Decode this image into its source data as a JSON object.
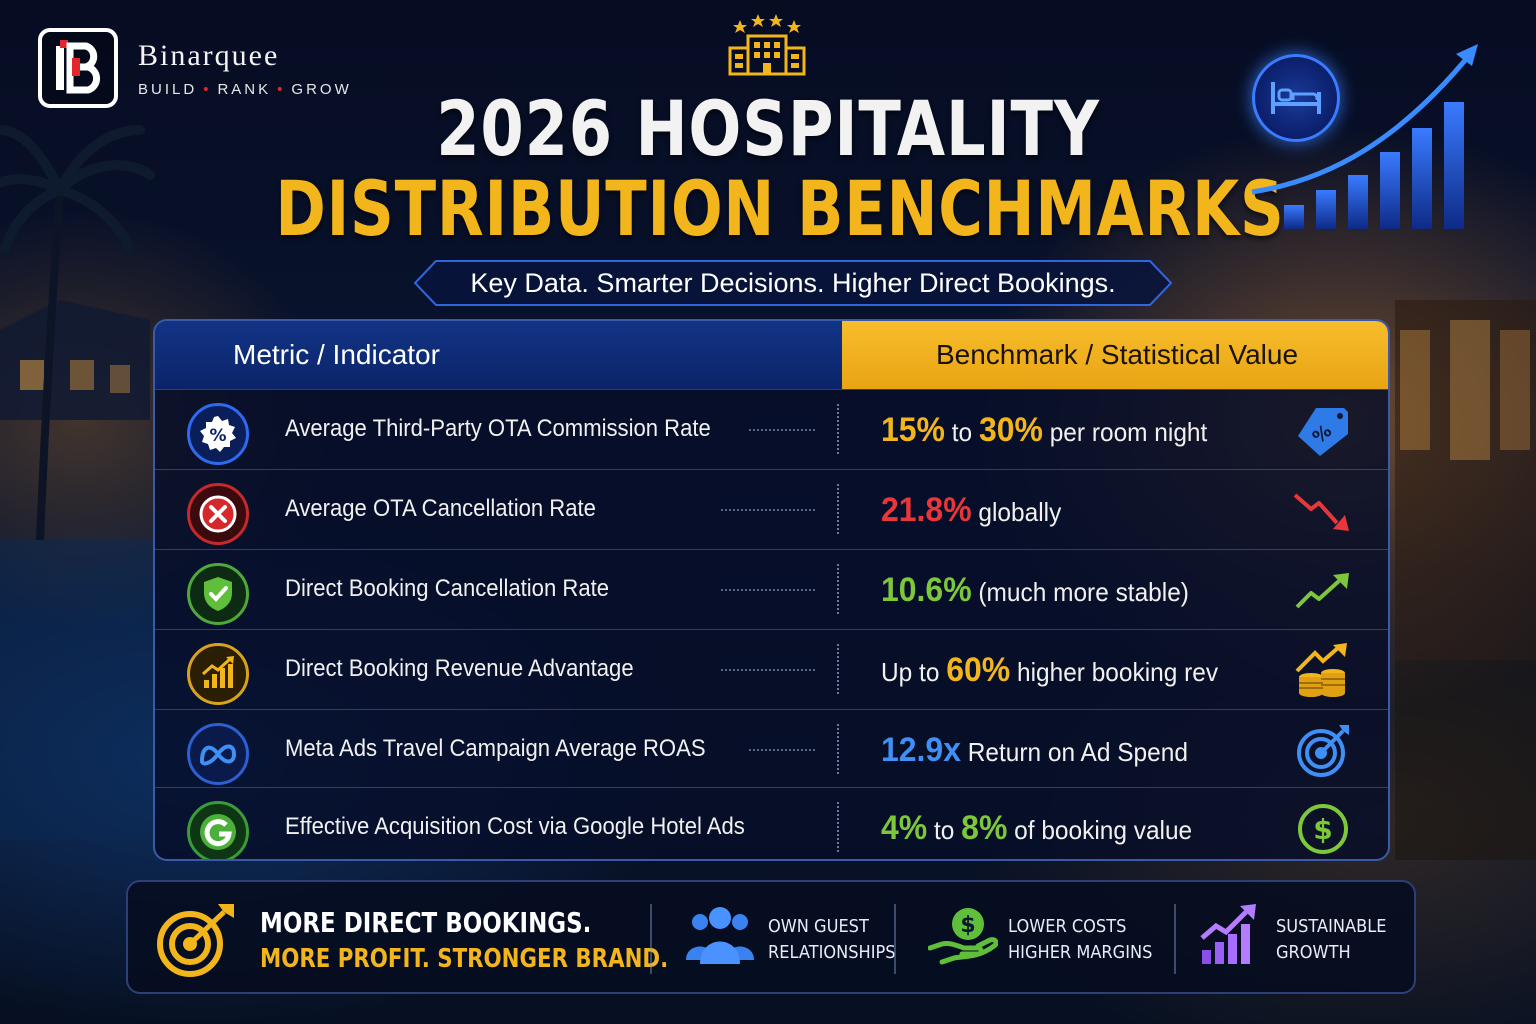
{
  "brand": {
    "name": "Binarquee",
    "tagline_parts": [
      "BUILD",
      "RANK",
      "GROW"
    ]
  },
  "title": {
    "line1": "2026 HOSPITALITY",
    "line2": "DISTRIBUTION BENCHMARKS",
    "subtitle": "Key Data. Smarter Decisions. Higher Direct Bookings."
  },
  "table": {
    "headers": {
      "metric": "Metric / Indicator",
      "value": "Benchmark / Statistical Value"
    },
    "rows": [
      {
        "icon": "percent-badge-icon",
        "label": "Average Third-Party OTA Commission Rate",
        "value_parts": [
          {
            "text": "15%",
            "style": "big",
            "color": "#f3b51c"
          },
          {
            "text": " to ",
            "style": "normal",
            "color": "#f1f1f1"
          },
          {
            "text": "30%",
            "style": "big",
            "color": "#f3b51c"
          },
          {
            "text": " per room night",
            "style": "normal",
            "color": "#f1f1f1"
          }
        ],
        "right_icon": "percent-tag-icon"
      },
      {
        "icon": "x-circle-icon",
        "label": "Average OTA Cancellation Rate",
        "value_parts": [
          {
            "text": "21.8%",
            "style": "big",
            "color": "#e8373a"
          },
          {
            "text": " globally",
            "style": "normal",
            "color": "#f1f1f1"
          }
        ],
        "right_icon": "trend-down-icon"
      },
      {
        "icon": "shield-check-icon",
        "label": "Direct Booking Cancellation Rate",
        "value_parts": [
          {
            "text": "10.6%",
            "style": "big",
            "color": "#7cc83a"
          },
          {
            "text": " (much more stable)",
            "style": "normal",
            "color": "#f1f1f1"
          }
        ],
        "right_icon": "trend-up-icon"
      },
      {
        "icon": "bar-growth-icon",
        "label": "Direct Booking Revenue Advantage",
        "value_parts": [
          {
            "text": "Up to ",
            "style": "normal",
            "color": "#f1f1f1"
          },
          {
            "text": "60%",
            "style": "big",
            "color": "#f3b51c"
          },
          {
            "text": " higher booking rev",
            "style": "normal",
            "color": "#f1f1f1"
          }
        ],
        "right_icon": "coins-growth-icon"
      },
      {
        "icon": "meta-logo-icon",
        "label": "Meta Ads Travel Campaign Average ROAS",
        "value_parts": [
          {
            "text": "12.9x",
            "style": "big",
            "color": "#3f8ff5"
          },
          {
            "text": " Return on Ad Spend",
            "style": "normal",
            "color": "#f1f1f1"
          }
        ],
        "right_icon": "target-icon"
      },
      {
        "icon": "google-logo-icon",
        "label": "Effective Acquisition Cost via Google Hotel Ads",
        "value_parts": [
          {
            "text": "4%",
            "style": "big",
            "color": "#7cc83a"
          },
          {
            "text": " to ",
            "style": "normal",
            "color": "#f1f1f1"
          },
          {
            "text": "8%",
            "style": "big",
            "color": "#7cc83a"
          },
          {
            "text": " of booking value",
            "style": "normal",
            "color": "#f1f1f1"
          }
        ],
        "right_icon": "dollar-circle-icon"
      }
    ]
  },
  "banner": {
    "headline1": "MORE DIRECT BOOKINGS.",
    "headline2": "MORE PROFIT. STRONGER BRAND.",
    "features": [
      {
        "icon": "people-icon",
        "line1": "OWN GUEST",
        "line2": "RELATIONSHIPS"
      },
      {
        "icon": "money-hand-icon",
        "line1": "LOWER COSTS",
        "line2": "HIGHER MARGINS"
      },
      {
        "icon": "growth-chart-icon",
        "line1": "SUSTAINABLE",
        "line2": "GROWTH"
      }
    ]
  },
  "colors": {
    "gold": "#f3b51c",
    "navy": "#0b2468",
    "red": "#e8373a",
    "green": "#7cc83a",
    "blue": "#3f8ff5"
  }
}
